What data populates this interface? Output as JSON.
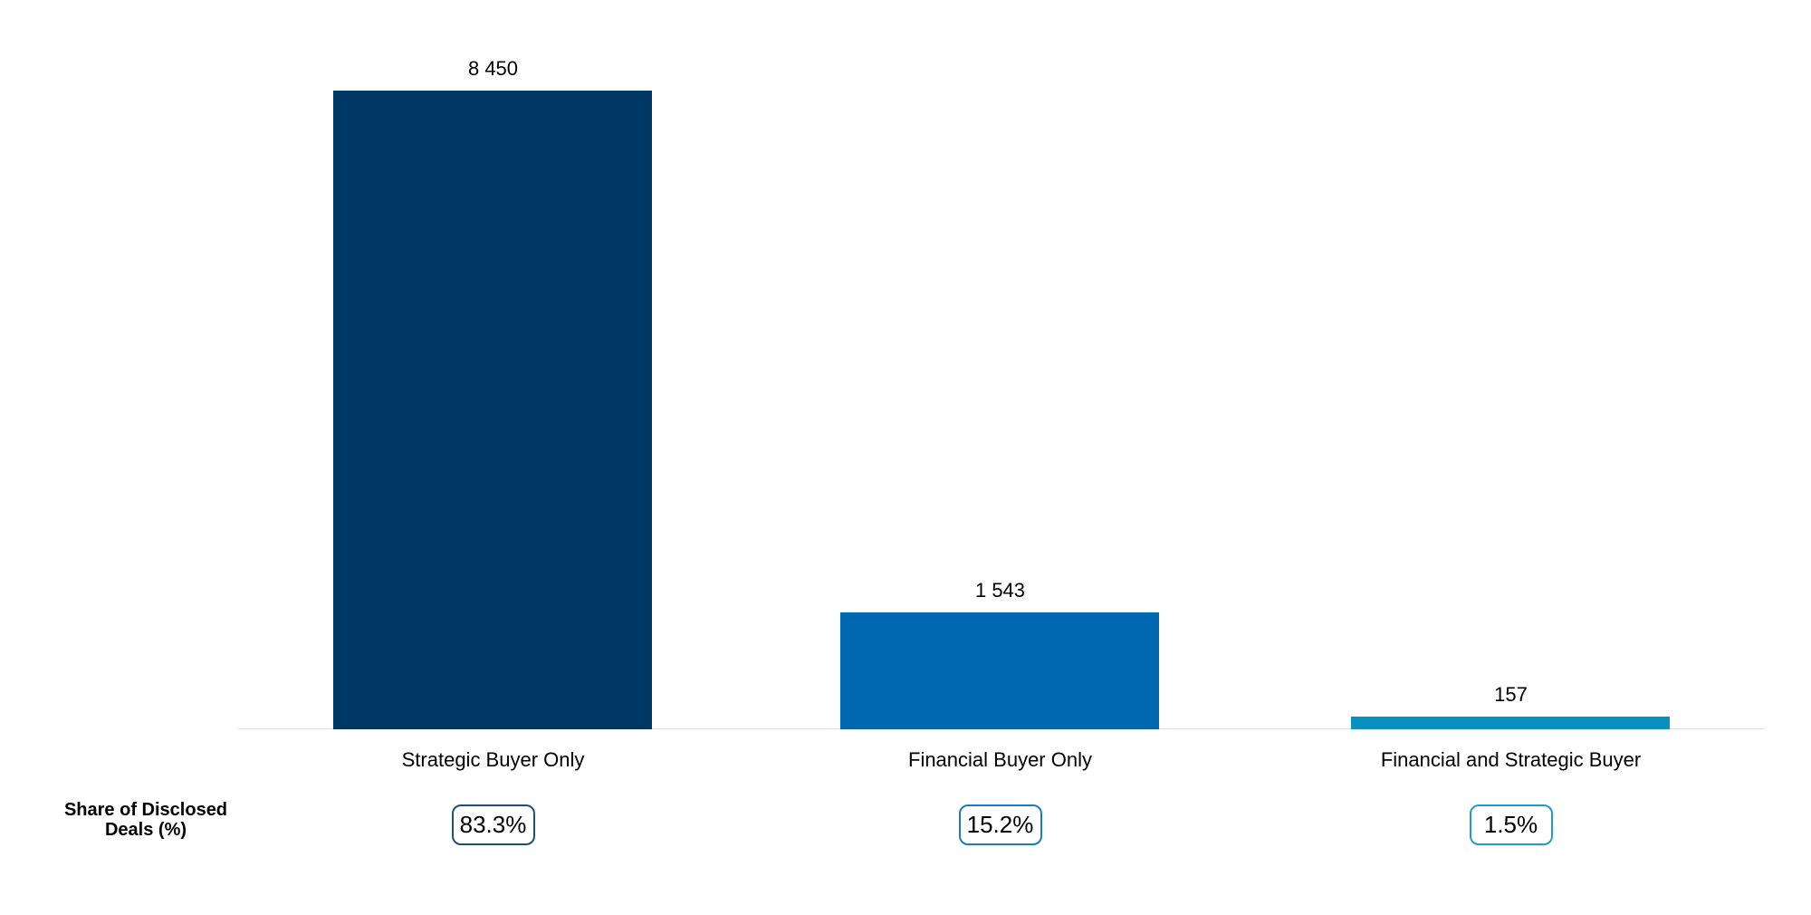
{
  "chart_data": {
    "type": "bar",
    "title": "",
    "categories": [
      "Strategic Buyer Only",
      "Financial Buyer Only",
      "Financial and Strategic Buyer"
    ],
    "values": [
      8450,
      1543,
      157
    ],
    "value_labels": [
      "8 450",
      "1 543",
      "157"
    ],
    "share_labels": [
      "83.3%",
      "15.2%",
      "1.5%"
    ],
    "bar_colors": [
      "#003865",
      "#0067b1",
      "#0a90be"
    ],
    "badge_border_colors": [
      "#1d4f7c",
      "#1a7cc2",
      "#1f9bce"
    ],
    "xlabel": "",
    "ylabel": "",
    "ylim": [
      0,
      8450
    ],
    "grid": false,
    "legend_position": "none",
    "axis_line_color": "#dedede"
  },
  "row_label": {
    "line1": "Share of Disclosed",
    "line2": "Deals (%)"
  }
}
